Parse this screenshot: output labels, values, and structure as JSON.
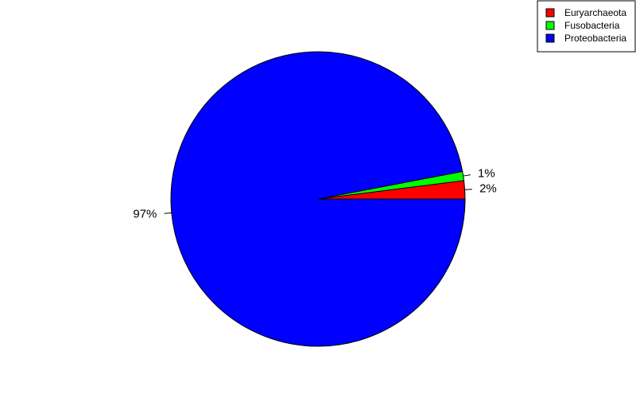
{
  "chart_data": {
    "type": "pie",
    "title": "",
    "slices": [
      {
        "name": "Euryarchaeota",
        "value": 2,
        "label": "2%",
        "color": "#ff0000"
      },
      {
        "name": "Fusobacteria",
        "value": 1,
        "label": "1%",
        "color": "#00ff00"
      },
      {
        "name": "Proteobacteria",
        "value": 97,
        "label": "97%",
        "color": "#0000ff"
      }
    ],
    "start_angle_deg": 0,
    "direction": "counterclockwise",
    "legend": {
      "placement": "top-right",
      "entries": [
        "Euryarchaeota",
        "Fusobacteria",
        "Proteobacteria"
      ]
    }
  }
}
